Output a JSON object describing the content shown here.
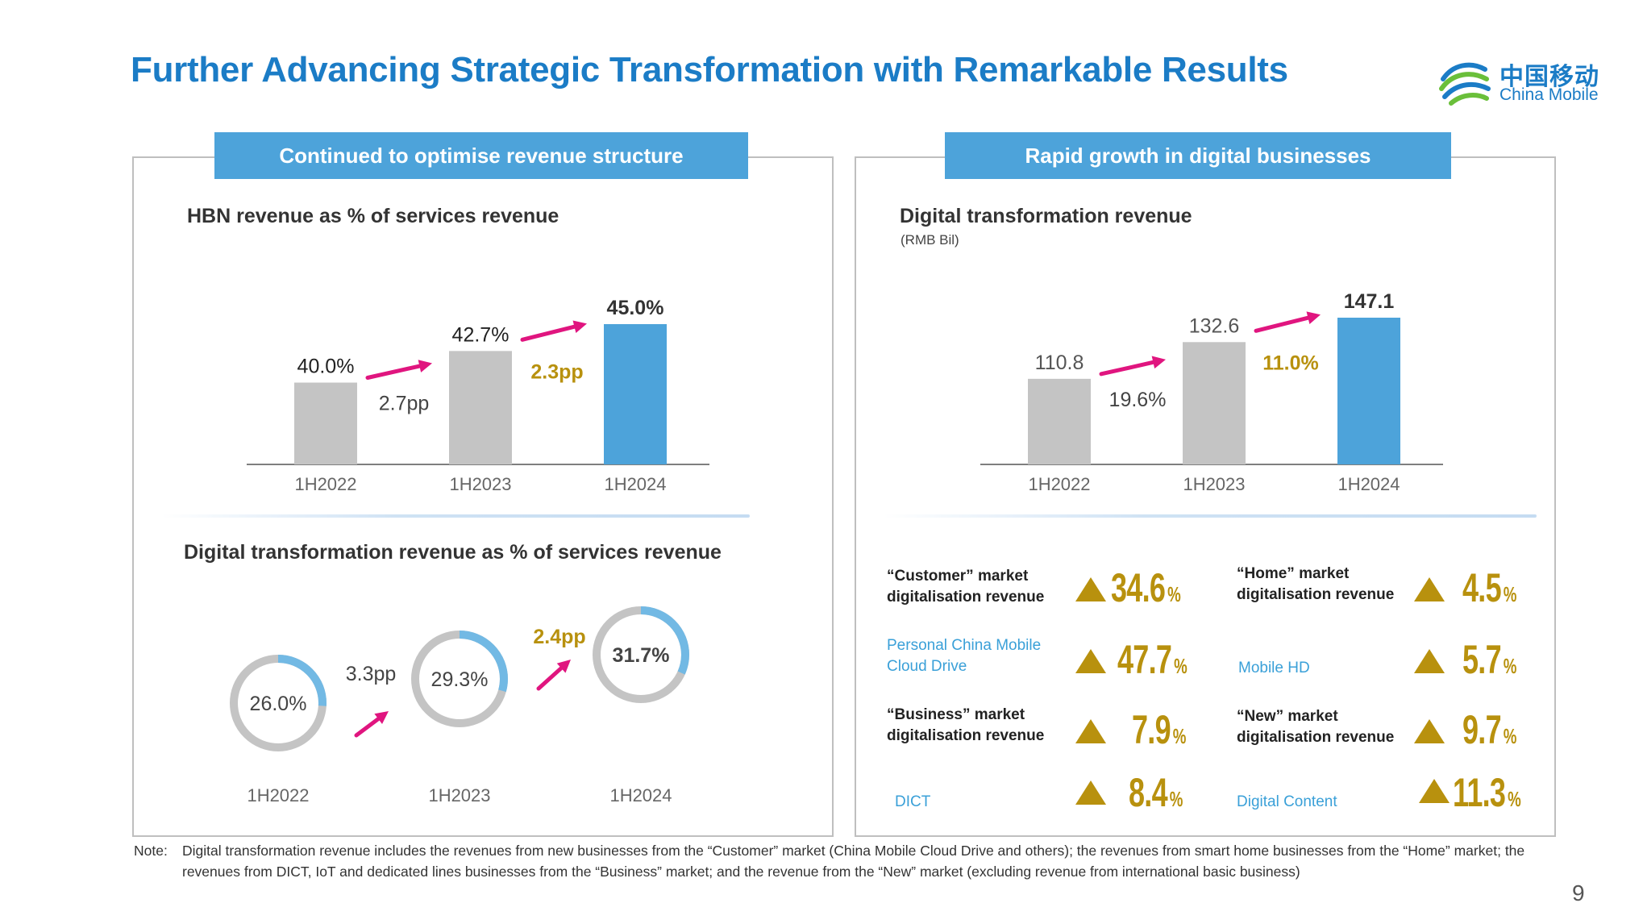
{
  "title": "Further Advancing Strategic Transformation with Remarkable Results",
  "logo": {
    "cn": "中国移动",
    "en": "China Mobile",
    "icon": "china-mobile-logo-icon"
  },
  "colors": {
    "accent_blue": "#4da3da",
    "title_blue": "#1b7cc6",
    "bar_gray": "#c4c4c4",
    "gold": "#b8910e",
    "magenta": "#e0157f"
  },
  "left_panel": {
    "header": "Continued to optimise revenue structure",
    "hbn": {
      "title": "HBN revenue as % of services revenue",
      "growth": [
        "2.7pp",
        "2.3pp"
      ]
    },
    "dt_share": {
      "title": "Digital transformation revenue as % of services revenue",
      "growth": [
        "3.3pp",
        "2.4pp"
      ]
    }
  },
  "right_panel": {
    "header": "Rapid growth in digital businesses",
    "dt_revenue": {
      "title": "Digital transformation revenue",
      "unit": "(RMB Bil)",
      "growth": [
        "19.6%",
        "11.0%"
      ]
    },
    "metrics": [
      {
        "label": "“Customer” market digitalisation revenue",
        "value": "34.6",
        "pct": "%",
        "style": "bold"
      },
      {
        "label": "“Home” market digitalisation revenue",
        "value": "4.5",
        "pct": "%",
        "style": "bold"
      },
      {
        "label": "Personal China Mobile Cloud Drive",
        "value": "47.7",
        "pct": "%",
        "style": "blue"
      },
      {
        "label": "Mobile HD",
        "value": "5.7",
        "pct": "%",
        "style": "blue"
      },
      {
        "label": "“Business” market digitalisation revenue",
        "value": "7.9",
        "pct": "%",
        "style": "bold"
      },
      {
        "label": "“New” market digitalisation revenue",
        "value": "9.7",
        "pct": "%",
        "style": "bold"
      },
      {
        "label": "DICT",
        "value": "8.4",
        "pct": "%",
        "style": "blue"
      },
      {
        "label": "Digital Content",
        "value": "11.3",
        "pct": "%",
        "style": "blue"
      }
    ]
  },
  "note": {
    "prefix": "Note:",
    "text": "Digital transformation revenue includes the revenues from new businesses from the “Customer” market (China Mobile Cloud Drive and others); the revenues from smart home businesses from the “Home” market; the revenues from DICT, IoT and dedicated lines businesses from the “Business” market; and the revenue from the “New” market (excluding revenue from international basic business)"
  },
  "page_number": "9",
  "chart_data": [
    {
      "type": "bar",
      "title": "HBN revenue as % of services revenue",
      "categories": [
        "1H2022",
        "1H2023",
        "1H2024"
      ],
      "values": [
        40.0,
        42.7,
        45.0
      ],
      "value_labels": [
        "40.0%",
        "42.7%",
        "45.0%"
      ],
      "highlight_index": 2,
      "growth_labels": [
        "2.7pp",
        "2.3pp"
      ]
    },
    {
      "type": "pie",
      "title": "Digital transformation revenue as % of services revenue",
      "categories": [
        "1H2022",
        "1H2023",
        "1H2024"
      ],
      "values": [
        26.0,
        29.3,
        31.7
      ],
      "value_labels": [
        "26.0%",
        "29.3%",
        "31.7%"
      ],
      "growth_labels": [
        "3.3pp",
        "2.4pp"
      ]
    },
    {
      "type": "bar",
      "title": "Digital transformation revenue",
      "ylabel": "(RMB Bil)",
      "categories": [
        "1H2022",
        "1H2023",
        "1H2024"
      ],
      "values": [
        110.8,
        132.6,
        147.1
      ],
      "value_labels": [
        "110.8",
        "132.6",
        "147.1"
      ],
      "highlight_index": 2,
      "growth_labels": [
        "19.6%",
        "11.0%"
      ]
    }
  ]
}
